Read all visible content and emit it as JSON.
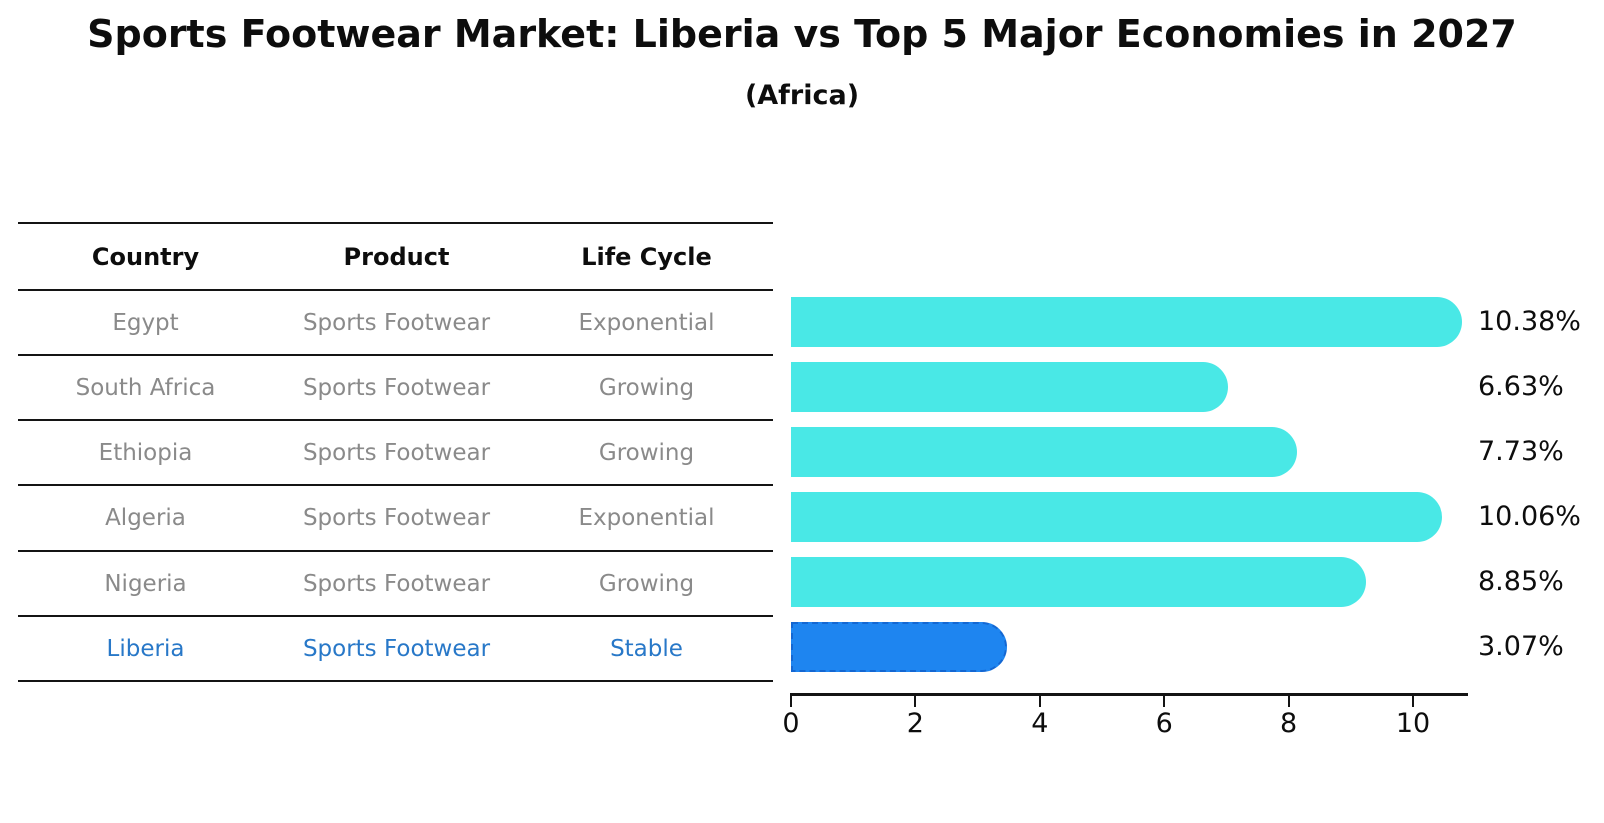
{
  "title": "Sports Footwear Market: Liberia vs Top 5 Major Economies in 2027",
  "subtitle": "(Africa)",
  "table": {
    "headers": {
      "country": "Country",
      "product": "Product",
      "life_cycle": "Life Cycle"
    },
    "rows": [
      {
        "country": "Egypt",
        "product": "Sports Footwear",
        "life_cycle": "Exponential",
        "highlight": false
      },
      {
        "country": "South Africa",
        "product": "Sports Footwear",
        "life_cycle": "Growing",
        "highlight": false
      },
      {
        "country": "Ethiopia",
        "product": "Sports Footwear",
        "life_cycle": "Growing",
        "highlight": false
      },
      {
        "country": "Algeria",
        "product": "Sports Footwear",
        "life_cycle": "Exponential",
        "highlight": false
      },
      {
        "country": "Nigeria",
        "product": "Sports Footwear",
        "life_cycle": "Growing",
        "highlight": false
      },
      {
        "country": "Liberia",
        "product": "Sports Footwear",
        "life_cycle": "Stable",
        "highlight": true
      }
    ]
  },
  "chart_data": {
    "type": "bar",
    "orientation": "horizontal",
    "title": "Sports Footwear Market: Liberia vs Top 5 Major Economies in 2027 (Africa)",
    "categories": [
      "Egypt",
      "South Africa",
      "Ethiopia",
      "Algeria",
      "Nigeria",
      "Liberia"
    ],
    "values": [
      10.38,
      6.63,
      7.73,
      10.06,
      8.85,
      3.07
    ],
    "value_labels": [
      "10.38%",
      "6.63%",
      "7.73%",
      "10.06%",
      "8.85%",
      "3.07%"
    ],
    "x_ticks": [
      0,
      2,
      4,
      6,
      8,
      10
    ],
    "xlim": [
      0,
      11
    ],
    "grid": false,
    "legend": "none",
    "highlight_index": 5
  },
  "colors": {
    "bar": "#49e8e6",
    "highlight_bar": "#1e85f0",
    "highlight_bar_border": "#1467d2",
    "highlight_text": "#2878c8",
    "table_text": "#8a8a8a",
    "ink": "#0d0d0d"
  }
}
